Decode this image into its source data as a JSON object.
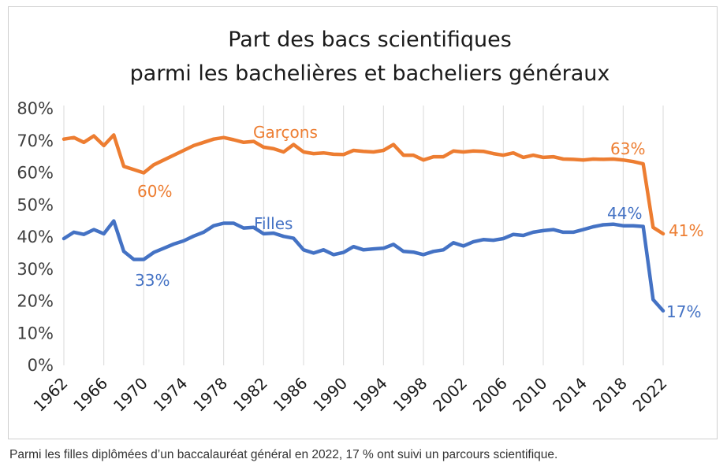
{
  "caption": "Parmi les filles diplômées d’un baccalauréat général en 2022, 17 % ont suivi un parcours scientifique.",
  "chart_data": {
    "type": "line",
    "title": [
      "Part des bacs scientifiques",
      "parmi les bachelières et bacheliers généraux"
    ],
    "xlabel": "",
    "ylabel": "",
    "ylim": [
      0,
      80
    ],
    "yticks": [
      "0%",
      "10%",
      "20%",
      "30%",
      "40%",
      "50%",
      "60%",
      "70%",
      "80%"
    ],
    "xticks": [
      "1962",
      "1966",
      "1970",
      "1974",
      "1978",
      "1982",
      "1986",
      "1990",
      "1994",
      "1998",
      "2002",
      "2006",
      "2010",
      "2014",
      "2018",
      "2022"
    ],
    "grid": "vertical",
    "x": [
      1962,
      1963,
      1964,
      1965,
      1966,
      1967,
      1968,
      1969,
      1970,
      1971,
      1972,
      1973,
      1974,
      1975,
      1976,
      1977,
      1978,
      1979,
      1980,
      1981,
      1982,
      1983,
      1984,
      1985,
      1986,
      1987,
      1988,
      1989,
      1990,
      1991,
      1992,
      1993,
      1994,
      1995,
      1996,
      1997,
      1998,
      1999,
      2000,
      2001,
      2002,
      2003,
      2004,
      2005,
      2006,
      2007,
      2008,
      2009,
      2010,
      2011,
      2012,
      2013,
      2014,
      2015,
      2016,
      2017,
      2018,
      2019,
      2020,
      2021,
      2022
    ],
    "series": [
      {
        "name": "Garçons",
        "color": "#ed7d31",
        "values": [
          70.5,
          71,
          69.5,
          71.5,
          68.5,
          71.8,
          62,
          61,
          60,
          62.5,
          64,
          65.5,
          67,
          68.5,
          69.5,
          70.5,
          71,
          70.3,
          69.5,
          69.8,
          68,
          67.5,
          66.5,
          68.8,
          66.5,
          66,
          66.2,
          65.8,
          65.7,
          67,
          66.7,
          66.5,
          67,
          68.8,
          65.5,
          65.5,
          64,
          65,
          65,
          66.8,
          66.5,
          66.8,
          66.7,
          66,
          65.5,
          66.2,
          64.8,
          65.5,
          64.8,
          65,
          64.3,
          64.2,
          64,
          64.3,
          64.2,
          64.3,
          64,
          63.5,
          62.8,
          43,
          41
        ]
      },
      {
        "name": "Filles",
        "color": "#4472c4",
        "values": [
          39.5,
          41.5,
          40.8,
          42.3,
          41,
          45,
          35.5,
          33,
          33,
          35.2,
          36.5,
          37.8,
          38.8,
          40.3,
          41.5,
          43.5,
          44.3,
          44.3,
          42.8,
          43,
          41,
          41.2,
          40.2,
          39.6,
          36,
          35,
          36,
          34.5,
          35.2,
          37,
          36,
          36.3,
          36.5,
          37.7,
          35.5,
          35.3,
          34.5,
          35.5,
          36,
          38.2,
          37.2,
          38.5,
          39.2,
          39,
          39.5,
          40.8,
          40.5,
          41.5,
          42,
          42.3,
          41.5,
          41.5,
          42.3,
          43.2,
          43.8,
          44,
          43.5,
          43.5,
          43.3,
          20.5,
          17
        ]
      }
    ],
    "annotations": [
      {
        "text": "Garçons",
        "series": "Garçons"
      },
      {
        "text": "60%",
        "series": "Garçons"
      },
      {
        "text": "63%",
        "series": "Garçons"
      },
      {
        "text": "41%",
        "series": "Garçons"
      },
      {
        "text": "Filles",
        "series": "Filles"
      },
      {
        "text": "33%",
        "series": "Filles"
      },
      {
        "text": "44%",
        "series": "Filles"
      },
      {
        "text": "17%",
        "series": "Filles"
      }
    ]
  }
}
